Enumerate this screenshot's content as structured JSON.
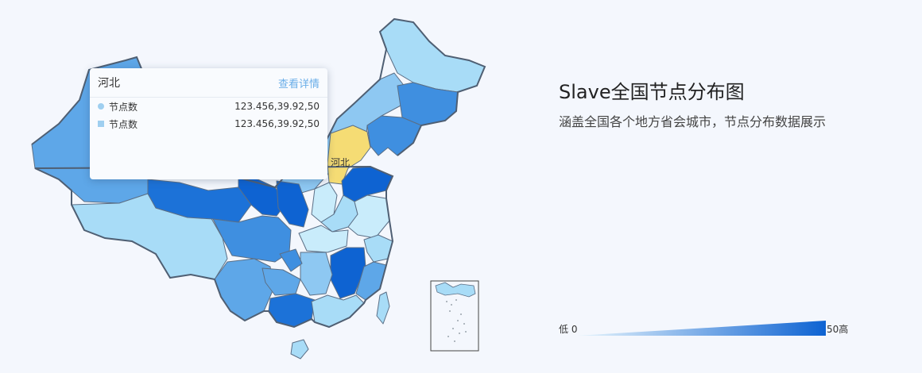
{
  "map": {
    "highlight_label": "河北",
    "colors": {
      "lightest": "#c9ecfb",
      "light": "#a8dcf7",
      "medium_light": "#8ec8f2",
      "medium": "#5ea7e8",
      "medium_dark": "#3f8fe0",
      "dark": "#1c72d8",
      "darkest": "#0e63d2",
      "highlight": "#f5dc74",
      "outline": "#4f5f73"
    }
  },
  "tooltip": {
    "title": "河北",
    "link": "查看详情",
    "rows": [
      {
        "label": "节点数",
        "value": "123.456,39.92,50"
      },
      {
        "label": "节点数",
        "value": "123.456,39.92,50"
      }
    ]
  },
  "panel": {
    "title": "Slave全国节点分布图",
    "description": "涵盖全国各个地方省会城市，节点分布数据展示"
  },
  "legend": {
    "low_label": "低",
    "min": "0",
    "max": "50",
    "high_label": "高",
    "gradient_start": "#e8f6fd",
    "gradient_end": "#0e63d2"
  }
}
